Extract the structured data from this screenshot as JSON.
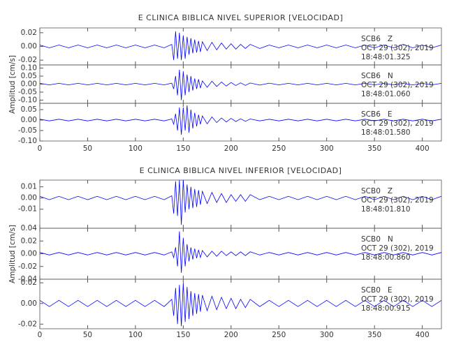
{
  "chart_data": [
    {
      "type": "line",
      "title": "E CLINICA BIBLICA NIVEL SUPERIOR [VELOCIDAD]",
      "y_label": "Amplitud [cm/s]",
      "xlim": [
        0,
        420
      ],
      "xticks": [
        0,
        50,
        100,
        150,
        200,
        250,
        300,
        350,
        400
      ],
      "color": "#0000ff",
      "x": [
        0,
        10,
        20,
        30,
        40,
        50,
        60,
        70,
        80,
        90,
        100,
        110,
        120,
        130,
        138,
        140,
        142,
        144,
        146,
        148,
        150,
        152,
        154,
        156,
        158,
        160,
        162,
        164,
        166,
        168,
        170,
        175,
        180,
        185,
        190,
        195,
        200,
        205,
        210,
        215,
        220,
        230,
        240,
        250,
        260,
        270,
        280,
        290,
        300,
        310,
        320,
        330,
        340,
        350,
        360,
        370,
        380,
        390,
        400,
        410,
        420
      ],
      "panels": [
        {
          "annotation": [
            "SCB6   Z",
            "OCT 29 (302), 2019",
            "18:48:01.325"
          ],
          "ylim": [
            -0.027,
            0.027
          ],
          "yticks": [
            0.02,
            {
              "value": 0,
              "label": "0.00"
            },
            -0.02
          ],
          "values": [
            0.002,
            -0.002,
            0.002,
            -0.002,
            0.002,
            -0.002,
            0.002,
            -0.002,
            0.002,
            -0.002,
            0.002,
            -0.002,
            0.002,
            -0.002,
            0.003,
            -0.02,
            0.022,
            -0.018,
            0.02,
            -0.02,
            0.016,
            -0.018,
            0.014,
            -0.012,
            0.012,
            -0.01,
            0.01,
            -0.009,
            0.008,
            -0.008,
            0.007,
            -0.006,
            0.006,
            -0.005,
            0.005,
            -0.004,
            0.004,
            -0.004,
            0.003,
            -0.003,
            0.003,
            -0.003,
            0.002,
            -0.002,
            0.002,
            -0.002,
            0.002,
            -0.002,
            0.002,
            -0.002,
            0.002,
            -0.002,
            0.002,
            -0.002,
            0.002,
            -0.002,
            0.003,
            -0.002,
            0.002,
            -0.002,
            0.002
          ]
        },
        {
          "annotation": [
            "SCB6   N",
            "OCT 29 (302), 2019",
            "18:48:01.060"
          ],
          "ylim": [
            -0.12,
            0.12
          ],
          "yticks": [
            {
              "value": 0.1,
              "label": "0.10"
            },
            0.05,
            {
              "value": 0,
              "label": "0.00"
            },
            -0.05,
            {
              "value": -0.1,
              "label": "-0.10"
            }
          ],
          "values": [
            0.005,
            -0.005,
            0.005,
            -0.005,
            0.005,
            -0.005,
            0.005,
            -0.005,
            0.005,
            -0.005,
            0.005,
            -0.005,
            0.005,
            -0.005,
            0.006,
            -0.03,
            0.05,
            -0.07,
            0.09,
            -0.1,
            0.08,
            -0.07,
            0.06,
            -0.05,
            0.05,
            -0.04,
            0.035,
            -0.03,
            0.03,
            -0.025,
            0.02,
            -0.02,
            0.018,
            -0.015,
            0.013,
            -0.012,
            0.01,
            -0.009,
            0.008,
            -0.008,
            0.007,
            -0.006,
            0.006,
            -0.005,
            0.005,
            -0.005,
            0.005,
            -0.005,
            0.005,
            -0.005,
            0.005,
            -0.005,
            0.005,
            -0.005,
            0.005,
            -0.005,
            0.005,
            -0.005,
            0.005,
            -0.005,
            0.005
          ]
        },
        {
          "annotation": [
            "SCB6   E",
            "OCT 29 (302), 2019",
            "18:48:01.580"
          ],
          "ylim": [
            -0.1,
            0.08
          ],
          "yticks": [
            0.05,
            {
              "value": 0,
              "label": "0.00"
            },
            -0.05,
            {
              "value": -0.1,
              "label": "-0.10"
            }
          ],
          "values": [
            0.004,
            -0.004,
            0.004,
            -0.004,
            0.004,
            -0.004,
            0.004,
            -0.004,
            0.004,
            -0.004,
            0.004,
            -0.004,
            0.004,
            -0.004,
            0.005,
            -0.02,
            0.03,
            -0.05,
            0.06,
            -0.07,
            0.06,
            -0.05,
            0.07,
            -0.06,
            0.05,
            -0.04,
            0.035,
            -0.03,
            0.025,
            -0.02,
            0.02,
            -0.018,
            0.015,
            -0.012,
            0.01,
            -0.009,
            0.008,
            -0.007,
            0.006,
            -0.006,
            0.005,
            -0.004,
            0.004,
            -0.004,
            0.004,
            -0.004,
            0.004,
            -0.004,
            0.004,
            -0.004,
            0.004,
            -0.004,
            0.004,
            -0.004,
            0.004,
            -0.004,
            0.004,
            -0.004,
            0.004,
            -0.004,
            0.004
          ]
        }
      ]
    },
    {
      "type": "line",
      "title": "E CLINICA BIBLICA NIVEL INFERIOR [VELOCIDAD]",
      "y_label": "Amplitud [cm/s]",
      "xlim": [
        0,
        420
      ],
      "xticks": [
        0,
        50,
        100,
        150,
        200,
        250,
        300,
        350,
        400
      ],
      "color": "#0000ff",
      "x": [
        0,
        10,
        20,
        30,
        40,
        50,
        60,
        70,
        80,
        90,
        100,
        110,
        120,
        130,
        138,
        140,
        142,
        144,
        146,
        148,
        150,
        152,
        154,
        156,
        158,
        160,
        162,
        164,
        166,
        168,
        170,
        175,
        180,
        185,
        190,
        195,
        200,
        205,
        210,
        215,
        220,
        230,
        240,
        250,
        260,
        270,
        280,
        290,
        300,
        310,
        320,
        330,
        340,
        350,
        360,
        370,
        380,
        390,
        400,
        410,
        420
      ],
      "panels": [
        {
          "annotation": [
            "SCB0   Z",
            "OCT 29 (302), 2019",
            "18:48:01.810"
          ],
          "ylim": [
            -0.027,
            0.016
          ],
          "yticks": [
            0.01,
            {
              "value": 0,
              "label": "0.00"
            },
            -0.01
          ],
          "values": [
            0.0015,
            -0.0015,
            0.0015,
            -0.0015,
            0.0015,
            -0.0015,
            0.0015,
            -0.0015,
            0.0015,
            -0.0015,
            0.0015,
            -0.0015,
            0.0015,
            -0.0015,
            0.002,
            -0.014,
            0.015,
            -0.016,
            0.016,
            -0.024,
            0.016,
            -0.013,
            0.012,
            -0.01,
            0.01,
            -0.009,
            0.008,
            -0.008,
            0.007,
            -0.006,
            0.006,
            -0.005,
            0.005,
            -0.004,
            0.004,
            -0.004,
            0.003,
            -0.003,
            0.003,
            -0.003,
            0.003,
            -0.0015,
            0.0015,
            -0.0015,
            0.0015,
            -0.0015,
            0.0015,
            -0.0015,
            0.0015,
            -0.0015,
            0.0015,
            -0.0015,
            0.0015,
            -0.0015,
            0.0015,
            -0.0015,
            0.0015,
            -0.0015,
            0.0015,
            -0.0015,
            0.0015
          ]
        },
        {
          "annotation": [
            "SCB0   N",
            "OCT 29 (302), 2019",
            "18:48:00.860"
          ],
          "ylim": [
            -0.04,
            0.04
          ],
          "yticks": [
            0.04,
            0.02,
            {
              "value": 0,
              "label": "0.00"
            },
            -0.02,
            -0.04
          ],
          "values": [
            0.002,
            -0.002,
            0.002,
            -0.002,
            0.002,
            -0.002,
            0.002,
            -0.002,
            0.002,
            -0.002,
            0.002,
            -0.002,
            0.002,
            -0.002,
            0.003,
            -0.006,
            0.01,
            -0.02,
            0.035,
            -0.03,
            0.025,
            -0.02,
            0.015,
            -0.012,
            0.01,
            -0.009,
            0.008,
            -0.007,
            0.006,
            -0.006,
            0.005,
            -0.005,
            0.004,
            -0.004,
            0.004,
            -0.003,
            0.003,
            -0.003,
            0.003,
            -0.003,
            0.003,
            -0.002,
            0.002,
            -0.002,
            0.002,
            -0.002,
            0.002,
            -0.002,
            0.002,
            -0.002,
            0.002,
            -0.002,
            0.002,
            -0.002,
            0.002,
            -0.002,
            0.002,
            -0.002,
            0.002,
            -0.002,
            0.002
          ]
        },
        {
          "annotation": [
            "SCB0   E",
            "OCT 29 (302), 2019",
            "18:48:00.915"
          ],
          "ylim": [
            -0.0245,
            0.0235
          ],
          "yticks": [
            0.02,
            {
              "value": 0,
              "label": "0.00"
            },
            -0.02
          ],
          "values": [
            0.003,
            -0.003,
            0.003,
            -0.003,
            0.003,
            -0.003,
            0.003,
            -0.003,
            0.003,
            -0.003,
            0.003,
            -0.003,
            0.003,
            -0.003,
            0.004,
            -0.012,
            0.015,
            -0.02,
            0.018,
            -0.022,
            0.02,
            -0.018,
            0.016,
            -0.015,
            0.012,
            -0.012,
            0.01,
            -0.01,
            0.009,
            -0.008,
            0.008,
            -0.007,
            0.007,
            -0.006,
            0.006,
            -0.005,
            0.005,
            -0.005,
            0.004,
            -0.004,
            0.004,
            -0.003,
            0.003,
            -0.003,
            0.003,
            -0.003,
            0.003,
            -0.003,
            0.003,
            -0.003,
            0.003,
            -0.003,
            0.003,
            -0.003,
            0.003,
            -0.003,
            0.003,
            -0.003,
            0.003,
            -0.003,
            0.003
          ]
        }
      ]
    }
  ]
}
